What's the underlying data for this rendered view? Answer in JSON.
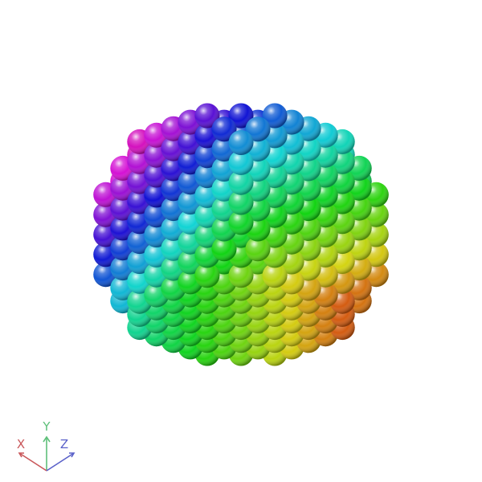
{
  "scene": {
    "background": "#ffffff",
    "object": "sphere-packing-lattice",
    "coloring": "hue-gradient",
    "palette": [
      "#d81b1b",
      "#e07a10",
      "#e3c614",
      "#9ad11e",
      "#22c96a",
      "#17c7c7",
      "#2a6fe0",
      "#7a1fd8",
      "#d21fc0",
      "#d81b5a"
    ]
  },
  "axes": {
    "x": {
      "label": "X",
      "color": "#c9575a"
    },
    "y": {
      "label": "Y",
      "color": "#5ec07a"
    },
    "z": {
      "label": "Z",
      "color": "#5a61c9"
    }
  }
}
